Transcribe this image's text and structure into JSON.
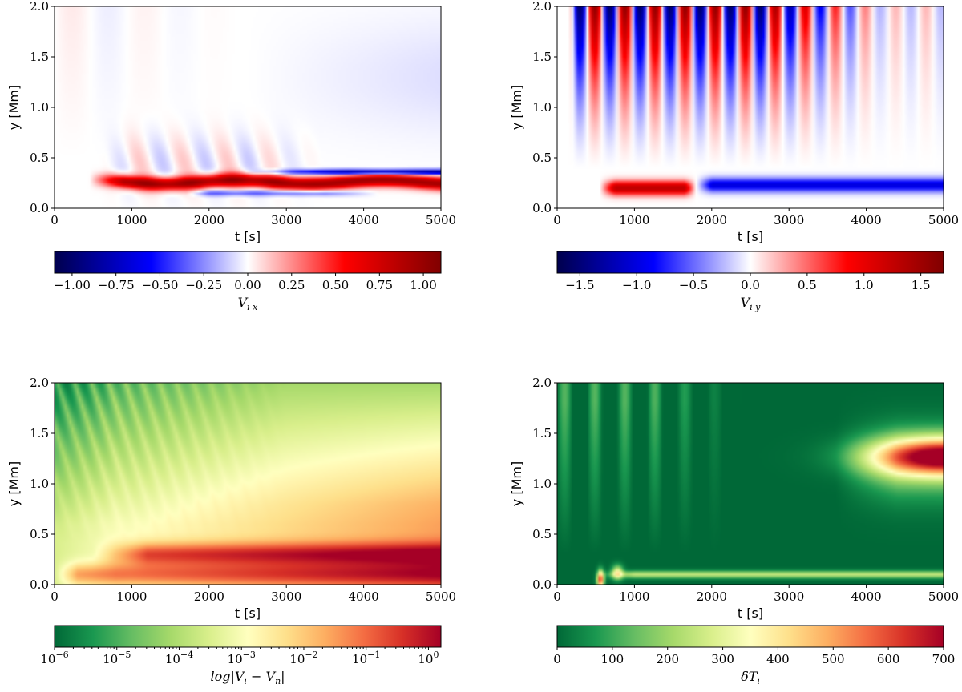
{
  "chart_data": [
    {
      "type": "heatmap",
      "variable": "V_i_x",
      "xlabel": "t [s]",
      "ylabel": "y [Mm]",
      "xlim": [
        0,
        5000
      ],
      "ylim": [
        0,
        2.0
      ],
      "x_ticks": [
        "0",
        "1000",
        "2000",
        "3000",
        "4000",
        "5000"
      ],
      "y_ticks": [
        "0.0",
        "0.5",
        "1.0",
        "1.5",
        "2.0"
      ],
      "colormap": "seismic",
      "colorbar": {
        "range": [
          -1.1,
          1.1
        ],
        "ticks": [
          "−1.00",
          "−0.75",
          "−0.50",
          "−0.25",
          "0.00",
          "0.25",
          "0.50",
          "0.75",
          "1.00"
        ],
        "label_main": "V",
        "label_sub": "i x"
      },
      "features": {
        "onset_t": 450,
        "main_band": {
          "t_start": 600,
          "t_end": 5000,
          "y_center": 0.25,
          "sign": "positive",
          "peak": 1.0
        },
        "upper_band": {
          "t_start": 2500,
          "t_end": 5000,
          "y_center": 0.36,
          "sign": "negative"
        },
        "lower_band": {
          "t_start": 1700,
          "t_end": 3500,
          "y_center": 0.15,
          "sign": "negative"
        }
      }
    },
    {
      "type": "heatmap",
      "variable": "V_i_y",
      "xlabel": "t [s]",
      "ylabel": "y [Mm]",
      "xlim": [
        0,
        5000
      ],
      "ylim": [
        0,
        2.0
      ],
      "x_ticks": [
        "0",
        "1000",
        "2000",
        "3000",
        "4000",
        "5000"
      ],
      "y_ticks": [
        "0.0",
        "0.5",
        "1.0",
        "1.5",
        "2.0"
      ],
      "colormap": "seismic",
      "colorbar": {
        "range": [
          -1.7,
          1.7
        ],
        "ticks": [
          "−1.5",
          "−1.0",
          "−0.5",
          "0.0",
          "0.5",
          "1.0",
          "1.5"
        ],
        "label_main": "V",
        "label_sub": "i y"
      },
      "features": {
        "positive_blob": {
          "t_start": 550,
          "t_end": 1750,
          "y_center": 0.2
        },
        "negative_band": {
          "t_start": 1800,
          "t_end": 5000,
          "y_center": 0.22
        },
        "stripes": {
          "t_start": 200,
          "t_end": 2600,
          "y_from": 0.5,
          "y_to": 2.0
        }
      }
    },
    {
      "type": "heatmap",
      "variable": "log|V_i - V_n|",
      "xlabel": "t [s]",
      "ylabel": "y [Mm]",
      "xlim": [
        0,
        5000
      ],
      "ylim": [
        0,
        2.0
      ],
      "x_ticks": [
        "0",
        "1000",
        "2000",
        "3000",
        "4000",
        "5000"
      ],
      "y_ticks": [
        "0.0",
        "0.5",
        "1.0",
        "1.5",
        "2.0"
      ],
      "colormap": "RdYlGn_r",
      "colorbar": {
        "scale": "log",
        "range_exp": [
          -6,
          0.2
        ],
        "tick_base": "10",
        "tick_exponents": [
          "−6",
          "−5",
          "−4",
          "−3",
          "−2",
          "−1",
          "0"
        ],
        "label": "log|V",
        "label_sub1": "i",
        "label_mid": " − V",
        "label_sub2": "n",
        "label_end": "|"
      }
    },
    {
      "type": "heatmap",
      "variable": "δT_i",
      "xlabel": "t [s]",
      "ylabel": "y [Mm]",
      "xlim": [
        0,
        5000
      ],
      "ylim": [
        0,
        2.0
      ],
      "x_ticks": [
        "0",
        "1000",
        "2000",
        "3000",
        "4000",
        "5000"
      ],
      "y_ticks": [
        "0.0",
        "0.5",
        "1.0",
        "1.5",
        "2.0"
      ],
      "colormap": "RdYlGn_r",
      "colorbar": {
        "range": [
          0,
          700
        ],
        "ticks": [
          "0",
          "100",
          "200",
          "300",
          "400",
          "500",
          "600",
          "700"
        ],
        "label_main": "δT",
        "label_sub": "i"
      },
      "features": {
        "hot_region": {
          "t_start": 3700,
          "t_end": 5000,
          "y_center": 1.25,
          "peak": 650
        },
        "low_band": {
          "t_start": 500,
          "t_end": 5000,
          "y_center": 0.1,
          "peak": 300
        }
      }
    }
  ]
}
